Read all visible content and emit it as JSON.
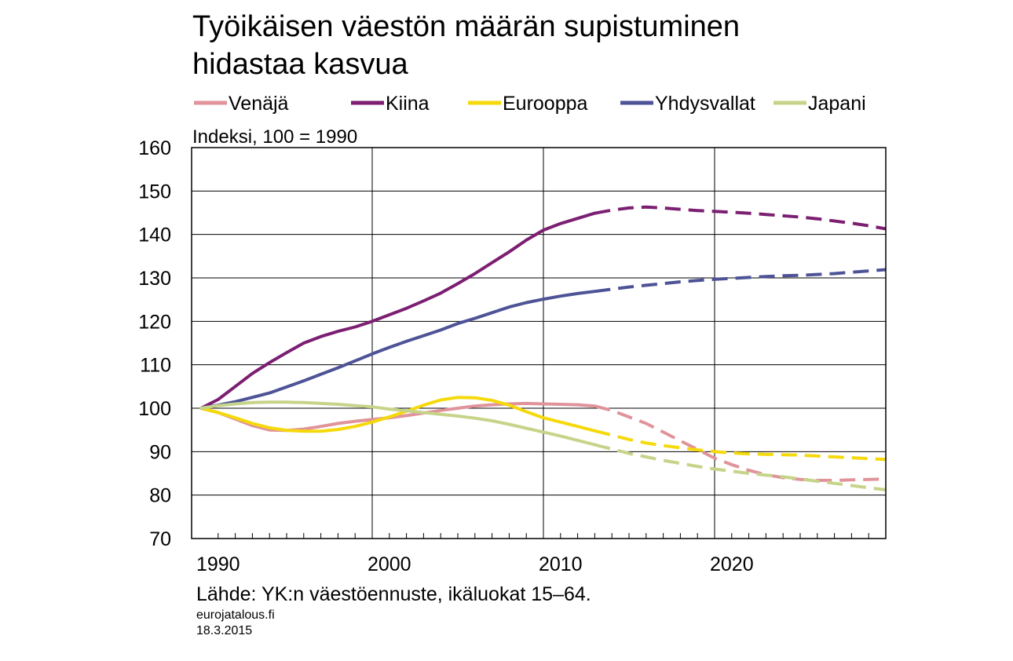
{
  "title": [
    "Työikäisen väestön määrän supistuminen",
    "hidastaa kasvua"
  ],
  "unit_label": "Indeksi, 100 = 1990",
  "source": "Lähde: YK:n väestöennuste, ikäluokat 15–64.",
  "site": "eurojatalous.fi",
  "date": "18.3.2015",
  "chart_data": {
    "type": "line",
    "x_range": [
      1990,
      2030
    ],
    "ylim": [
      70,
      160
    ],
    "y_ticks": [
      70,
      80,
      90,
      100,
      110,
      120,
      130,
      140,
      150,
      160
    ],
    "x_tick_labels": [
      "1990",
      "2000",
      "2010",
      "2020"
    ],
    "x_tick_values": [
      1991,
      2001,
      2011,
      2021
    ],
    "vertical_gridlines_at": [
      2000,
      2010,
      2020
    ],
    "grid": "horizontal and vertical",
    "legend_position": "top",
    "projection_start": 2013,
    "line_style_note": "solid = history, dashed = projection",
    "series": [
      {
        "name": "Venäjä",
        "color": "#e0939b",
        "points": [
          [
            1990,
            100
          ],
          [
            1991,
            99
          ],
          [
            1992,
            97.5
          ],
          [
            1993,
            96
          ],
          [
            1994,
            95
          ],
          [
            1995,
            94.9
          ],
          [
            1996,
            95.2
          ],
          [
            1997,
            95.8
          ],
          [
            1998,
            96.5
          ],
          [
            1999,
            97
          ],
          [
            2000,
            97.4
          ],
          [
            2001,
            97.8
          ],
          [
            2002,
            98.3
          ],
          [
            2003,
            98.9
          ],
          [
            2004,
            99.5
          ],
          [
            2005,
            100
          ],
          [
            2006,
            100.5
          ],
          [
            2007,
            100.8
          ],
          [
            2008,
            101
          ],
          [
            2009,
            101.1
          ],
          [
            2010,
            101
          ],
          [
            2011,
            100.9
          ],
          [
            2012,
            100.8
          ],
          [
            2013,
            100.5
          ],
          [
            2014,
            99.5
          ],
          [
            2015,
            98
          ],
          [
            2016,
            96.5
          ],
          [
            2017,
            94.5
          ],
          [
            2018,
            92.5
          ],
          [
            2019,
            90.5
          ],
          [
            2020,
            88.5
          ],
          [
            2021,
            87
          ],
          [
            2022,
            85.7
          ],
          [
            2023,
            84.7
          ],
          [
            2024,
            84
          ],
          [
            2025,
            83.6
          ],
          [
            2026,
            83.4
          ],
          [
            2027,
            83.4
          ],
          [
            2028,
            83.5
          ],
          [
            2029,
            83.6
          ],
          [
            2030,
            83.7
          ]
        ]
      },
      {
        "name": "Kiina",
        "color": "#7c1f72",
        "points": [
          [
            1990,
            100
          ],
          [
            1991,
            102
          ],
          [
            1992,
            105
          ],
          [
            1993,
            108
          ],
          [
            1994,
            110.5
          ],
          [
            1995,
            112.8
          ],
          [
            1996,
            115
          ],
          [
            1997,
            116.5
          ],
          [
            1998,
            117.7
          ],
          [
            1999,
            118.7
          ],
          [
            2000,
            120
          ],
          [
            2001,
            121.5
          ],
          [
            2002,
            123
          ],
          [
            2003,
            124.7
          ],
          [
            2004,
            126.5
          ],
          [
            2005,
            128.7
          ],
          [
            2006,
            131
          ],
          [
            2007,
            133.5
          ],
          [
            2008,
            136
          ],
          [
            2009,
            138.7
          ],
          [
            2010,
            141
          ],
          [
            2011,
            142.5
          ],
          [
            2012,
            143.7
          ],
          [
            2013,
            144.9
          ],
          [
            2014,
            145.6
          ],
          [
            2015,
            146.1
          ],
          [
            2016,
            146.3
          ],
          [
            2017,
            146.1
          ],
          [
            2018,
            145.8
          ],
          [
            2019,
            145.5
          ],
          [
            2020,
            145.3
          ],
          [
            2021,
            145.1
          ],
          [
            2022,
            144.9
          ],
          [
            2023,
            144.6
          ],
          [
            2024,
            144.3
          ],
          [
            2025,
            144
          ],
          [
            2026,
            143.6
          ],
          [
            2027,
            143.1
          ],
          [
            2028,
            142.6
          ],
          [
            2029,
            142
          ],
          [
            2030,
            141.3
          ]
        ]
      },
      {
        "name": "Eurooppa",
        "color": "#f5d90a",
        "points": [
          [
            1990,
            100
          ],
          [
            1991,
            99
          ],
          [
            1992,
            97.8
          ],
          [
            1993,
            96.5
          ],
          [
            1994,
            95.5
          ],
          [
            1995,
            94.9
          ],
          [
            1996,
            94.7
          ],
          [
            1997,
            94.7
          ],
          [
            1998,
            95.1
          ],
          [
            1999,
            95.8
          ],
          [
            2000,
            96.8
          ],
          [
            2001,
            98
          ],
          [
            2002,
            99.3
          ],
          [
            2003,
            100.7
          ],
          [
            2004,
            101.9
          ],
          [
            2005,
            102.5
          ],
          [
            2006,
            102.4
          ],
          [
            2007,
            101.8
          ],
          [
            2008,
            100.7
          ],
          [
            2009,
            99.2
          ],
          [
            2010,
            97.8
          ],
          [
            2011,
            96.8
          ],
          [
            2012,
            95.8
          ],
          [
            2013,
            94.8
          ],
          [
            2014,
            93.8
          ],
          [
            2015,
            92.8
          ],
          [
            2016,
            92
          ],
          [
            2017,
            91.4
          ],
          [
            2018,
            90.9
          ],
          [
            2019,
            90.4
          ],
          [
            2020,
            90
          ],
          [
            2021,
            89.7
          ],
          [
            2022,
            89.5
          ],
          [
            2023,
            89.4
          ],
          [
            2024,
            89.3
          ],
          [
            2025,
            89.2
          ],
          [
            2026,
            89
          ],
          [
            2027,
            88.8
          ],
          [
            2028,
            88.6
          ],
          [
            2029,
            88.4
          ],
          [
            2030,
            88.2
          ]
        ]
      },
      {
        "name": "Yhdysvallat",
        "color": "#4d5396",
        "points": [
          [
            1990,
            100
          ],
          [
            1991,
            100.7
          ],
          [
            1992,
            101.5
          ],
          [
            1993,
            102.5
          ],
          [
            1994,
            103.5
          ],
          [
            1995,
            104.9
          ],
          [
            1996,
            106.3
          ],
          [
            1997,
            107.8
          ],
          [
            1998,
            109.3
          ],
          [
            1999,
            110.9
          ],
          [
            2000,
            112.5
          ],
          [
            2001,
            114
          ],
          [
            2002,
            115.4
          ],
          [
            2003,
            116.7
          ],
          [
            2004,
            118
          ],
          [
            2005,
            119.5
          ],
          [
            2006,
            120.7
          ],
          [
            2007,
            122
          ],
          [
            2008,
            123.3
          ],
          [
            2009,
            124.3
          ],
          [
            2010,
            125.1
          ],
          [
            2011,
            125.8
          ],
          [
            2012,
            126.4
          ],
          [
            2013,
            126.9
          ],
          [
            2014,
            127.4
          ],
          [
            2015,
            127.9
          ],
          [
            2016,
            128.3
          ],
          [
            2017,
            128.7
          ],
          [
            2018,
            129.1
          ],
          [
            2019,
            129.4
          ],
          [
            2020,
            129.7
          ],
          [
            2021,
            129.9
          ],
          [
            2022,
            130.1
          ],
          [
            2023,
            130.3
          ],
          [
            2024,
            130.5
          ],
          [
            2025,
            130.6
          ],
          [
            2026,
            130.8
          ],
          [
            2027,
            131
          ],
          [
            2028,
            131.3
          ],
          [
            2029,
            131.6
          ],
          [
            2030,
            131.9
          ]
        ]
      },
      {
        "name": "Japani",
        "color": "#c6d48a",
        "points": [
          [
            1990,
            100
          ],
          [
            1991,
            100.6
          ],
          [
            1992,
            101
          ],
          [
            1993,
            101.3
          ],
          [
            1994,
            101.4
          ],
          [
            1995,
            101.4
          ],
          [
            1996,
            101.3
          ],
          [
            1997,
            101.1
          ],
          [
            1998,
            100.9
          ],
          [
            1999,
            100.6
          ],
          [
            2000,
            100.3
          ],
          [
            2001,
            99.8
          ],
          [
            2002,
            99.4
          ],
          [
            2003,
            99
          ],
          [
            2004,
            98.6
          ],
          [
            2005,
            98.2
          ],
          [
            2006,
            97.7
          ],
          [
            2007,
            97.1
          ],
          [
            2008,
            96.3
          ],
          [
            2009,
            95.4
          ],
          [
            2010,
            94.5
          ],
          [
            2011,
            93.6
          ],
          [
            2012,
            92.6
          ],
          [
            2013,
            91.6
          ],
          [
            2014,
            90.6
          ],
          [
            2015,
            89.6
          ],
          [
            2016,
            88.8
          ],
          [
            2017,
            88
          ],
          [
            2018,
            87.3
          ],
          [
            2019,
            86.6
          ],
          [
            2020,
            86
          ],
          [
            2021,
            85.5
          ],
          [
            2022,
            85
          ],
          [
            2023,
            84.6
          ],
          [
            2024,
            84.2
          ],
          [
            2025,
            83.7
          ],
          [
            2026,
            83.2
          ],
          [
            2027,
            82.7
          ],
          [
            2028,
            82.2
          ],
          [
            2029,
            81.7
          ],
          [
            2030,
            81.2
          ]
        ]
      }
    ]
  }
}
